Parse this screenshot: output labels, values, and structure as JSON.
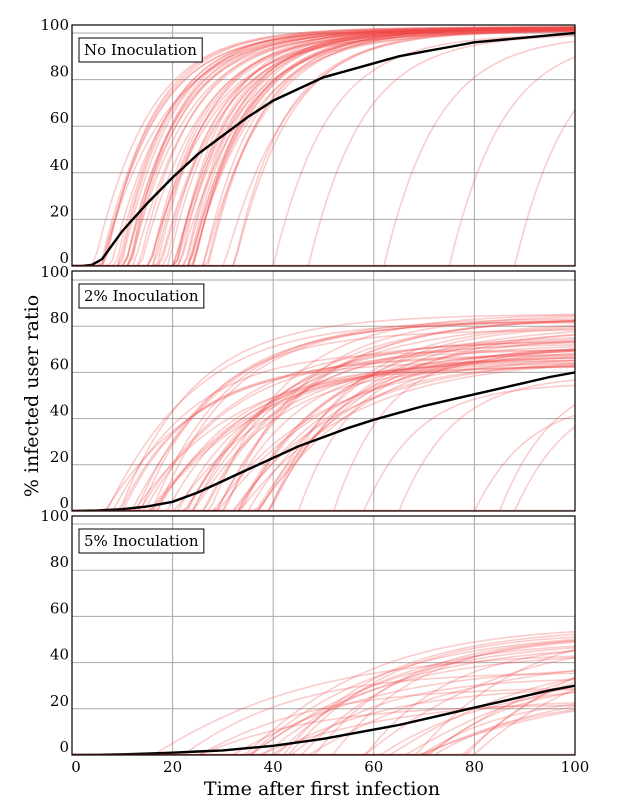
{
  "chart_data": {
    "type": "line",
    "xlabel": "Time after first infection",
    "ylabel": "% infected user ratio",
    "xlim": [
      0,
      100
    ],
    "ylim": [
      0,
      105
    ],
    "x_ticks": [
      0,
      20,
      40,
      60,
      80,
      100
    ],
    "y_ticks": [
      0,
      20,
      40,
      60,
      80,
      100
    ],
    "grid": true,
    "colors": {
      "average_line": "#000000",
      "simulation_lines": "#f04848",
      "grid": "#a8a8a8",
      "frame": "#000000"
    },
    "panels": [
      {
        "label": "No Inoculation",
        "average": {
          "x": [
            0,
            2,
            4,
            6,
            8,
            10,
            15,
            20,
            25,
            30,
            35,
            40,
            45,
            50,
            55,
            60,
            65,
            70,
            75,
            80,
            85,
            90,
            95,
            100
          ],
          "y": [
            0,
            0,
            0.5,
            3,
            9,
            15,
            27,
            38,
            48,
            56,
            64,
            71,
            76,
            81,
            84,
            87,
            90,
            92,
            94,
            96,
            97,
            98,
            99,
            100
          ]
        },
        "simulations": {
          "count": 55,
          "onset_range": [
            3,
            33
          ],
          "late_onsets": [
            40,
            47,
            62,
            75,
            88
          ],
          "plateau": 103
        }
      },
      {
        "label": "2% Inoculation",
        "average": {
          "x": [
            0,
            5,
            10,
            15,
            20,
            25,
            30,
            35,
            40,
            45,
            50,
            55,
            60,
            65,
            70,
            75,
            80,
            85,
            90,
            95,
            100
          ],
          "y": [
            0,
            0.2,
            0.8,
            2,
            4,
            8,
            13,
            18,
            23,
            28,
            32,
            36,
            39.5,
            42.5,
            45.5,
            48,
            50.5,
            53,
            55.5,
            58,
            60
          ]
        },
        "simulations": {
          "count": 50,
          "onset_range": [
            6,
            40
          ],
          "late_onsets": [
            45,
            52,
            58,
            65,
            80,
            85,
            88
          ],
          "plateau_range": [
            62,
            86
          ]
        }
      },
      {
        "label": "5% Inoculation",
        "average": {
          "x": [
            0,
            5,
            10,
            15,
            20,
            25,
            30,
            35,
            40,
            45,
            50,
            55,
            60,
            65,
            70,
            75,
            80,
            85,
            90,
            95,
            100
          ],
          "y": [
            0,
            0.1,
            0.3,
            0.6,
            1,
            1.5,
            2,
            3,
            4,
            5.5,
            7,
            9,
            11,
            13,
            15.5,
            18,
            20.5,
            23,
            25.5,
            28,
            30
          ]
        },
        "simulations": {
          "count": 35,
          "onset_range": [
            15,
            80
          ],
          "plateau_range": [
            22,
            60
          ]
        }
      }
    ]
  }
}
